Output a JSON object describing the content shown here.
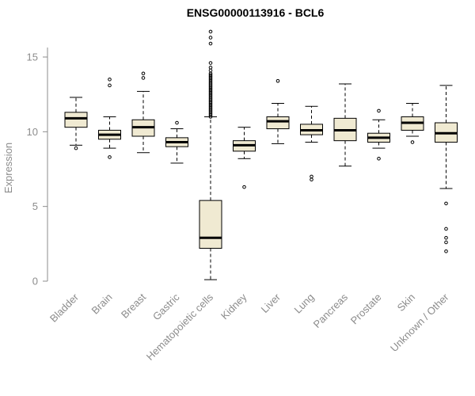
{
  "chart_data": {
    "type": "boxplot",
    "title": "ENSG00000113916 - BCL6",
    "ylabel": "Expression",
    "ylim": [
      0,
      15
    ],
    "yticks": [
      0,
      5,
      10,
      15
    ],
    "grid": false,
    "legend": false,
    "colors": {
      "box_fill": "#f0ead2",
      "box_stroke": "#000000",
      "median": "#000000",
      "axis": "#8c8c8c",
      "title": "#000000"
    },
    "categories": [
      "Bladder",
      "Brain",
      "Breast",
      "Gastric",
      "Hematopoietic cells",
      "Kidney",
      "Liver",
      "Lung",
      "Pancreas",
      "Prostate",
      "Skin",
      "Unknown / Other"
    ],
    "boxes": [
      {
        "category": "Bladder",
        "whisker_low": 9.1,
        "q1": 10.3,
        "median": 10.9,
        "q3": 11.3,
        "whisker_high": 12.3,
        "outliers": [
          8.9
        ]
      },
      {
        "category": "Brain",
        "whisker_low": 8.9,
        "q1": 9.5,
        "median": 9.8,
        "q3": 10.1,
        "whisker_high": 11.0,
        "outliers": [
          13.5,
          13.1,
          8.3
        ]
      },
      {
        "category": "Breast",
        "whisker_low": 8.6,
        "q1": 9.7,
        "median": 10.3,
        "q3": 10.8,
        "whisker_high": 12.7,
        "outliers": [
          13.9,
          13.6
        ]
      },
      {
        "category": "Gastric",
        "whisker_low": 7.9,
        "q1": 9.0,
        "median": 9.3,
        "q3": 9.6,
        "whisker_high": 10.2,
        "outliers": [
          10.6
        ]
      },
      {
        "category": "Hematopoietic cells",
        "whisker_low": 0.1,
        "q1": 2.2,
        "median": 2.9,
        "q3": 5.4,
        "whisker_high": 11.0,
        "outliers": [
          11.0,
          11.1,
          11.2,
          11.3,
          11.4,
          11.5,
          11.6,
          11.7,
          11.8,
          11.9,
          12.0,
          12.1,
          12.2,
          12.3,
          12.4,
          12.5,
          12.6,
          12.7,
          12.8,
          12.9,
          13.0,
          13.1,
          13.2,
          13.3,
          13.4,
          13.5,
          13.6,
          13.7,
          13.8,
          13.9,
          14.1,
          14.3,
          14.6,
          15.9,
          16.3,
          16.7
        ]
      },
      {
        "category": "Kidney",
        "whisker_low": 8.2,
        "q1": 8.7,
        "median": 9.1,
        "q3": 9.4,
        "whisker_high": 10.3,
        "outliers": [
          6.3
        ]
      },
      {
        "category": "Liver",
        "whisker_low": 9.2,
        "q1": 10.2,
        "median": 10.7,
        "q3": 11.0,
        "whisker_high": 11.9,
        "outliers": [
          13.4
        ]
      },
      {
        "category": "Lung",
        "whisker_low": 9.3,
        "q1": 9.8,
        "median": 10.1,
        "q3": 10.5,
        "whisker_high": 11.7,
        "outliers": [
          7.0,
          6.8
        ]
      },
      {
        "category": "Pancreas",
        "whisker_low": 7.7,
        "q1": 9.4,
        "median": 10.1,
        "q3": 10.9,
        "whisker_high": 13.2,
        "outliers": []
      },
      {
        "category": "Prostate",
        "whisker_low": 8.9,
        "q1": 9.3,
        "median": 9.6,
        "q3": 9.9,
        "whisker_high": 10.8,
        "outliers": [
          11.4,
          8.2
        ]
      },
      {
        "category": "Skin",
        "whisker_low": 9.7,
        "q1": 10.1,
        "median": 10.6,
        "q3": 11.0,
        "whisker_high": 11.9,
        "outliers": [
          9.3
        ]
      },
      {
        "category": "Unknown / Other",
        "whisker_low": 6.2,
        "q1": 9.3,
        "median": 9.9,
        "q3": 10.6,
        "whisker_high": 13.1,
        "outliers": [
          5.2,
          3.5,
          2.9,
          2.6,
          2.0
        ]
      }
    ]
  }
}
